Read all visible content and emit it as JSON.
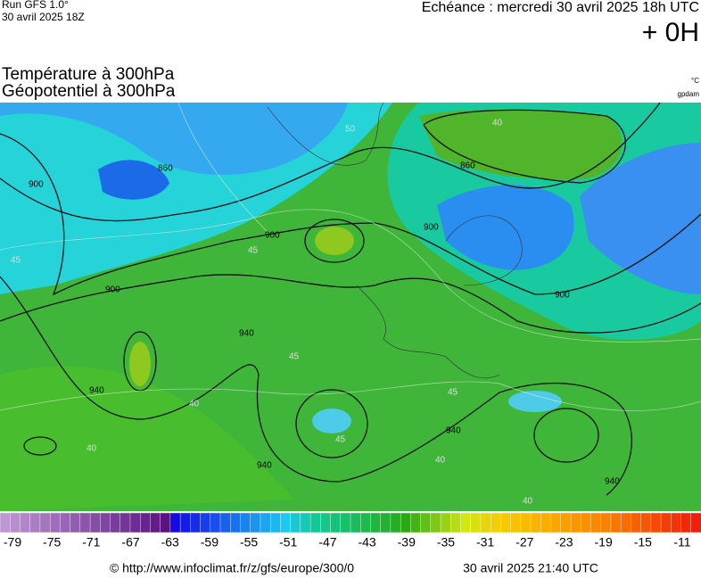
{
  "header": {
    "run": "Run GFS 1.0°",
    "run_date": "30 avril 2025 18Z",
    "echeance": "Echéance : mercredi 30 avril 2025 18h UTC",
    "offset": "+ 0H",
    "title_temp": "Température à 300hPa",
    "title_geo": "Géopotentiel à 300hPa",
    "unit_temp": "°C",
    "unit_geo": "gpdam"
  },
  "map": {
    "contour_labels": [
      "900",
      "860",
      "900",
      "900",
      "860",
      "900",
      "900",
      "940",
      "940",
      "940",
      "940",
      "940",
      "45",
      "45",
      "45",
      "40",
      "40",
      "45",
      "50",
      "40",
      "45",
      "40",
      "40"
    ]
  },
  "scale": {
    "labels": [
      -79,
      -75,
      -71,
      -67,
      -63,
      -59,
      -55,
      -51,
      -47,
      -43,
      -39,
      -35,
      -31,
      -27,
      -23,
      -19,
      -15,
      -11
    ]
  },
  "footer": {
    "url": "© http://www.infoclimat.fr/z/gfs/europe/300/0",
    "timestamp": "30 avril 2025 21:40 UTC"
  }
}
